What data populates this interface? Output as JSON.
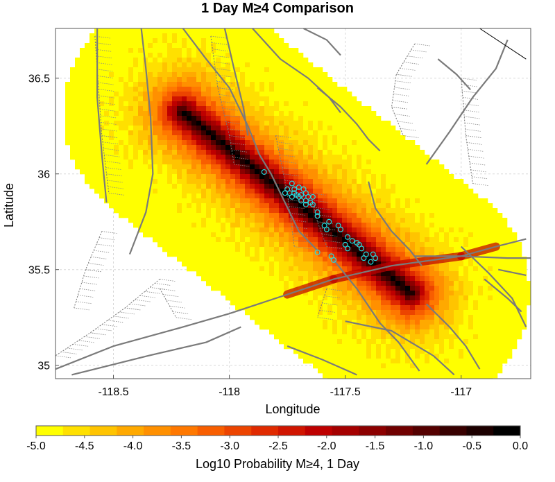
{
  "chart_data": {
    "type": "heatmap",
    "title": "1 Day M≥4 Comparison",
    "xlabel": "Longitude",
    "ylabel": "Latitude",
    "xlim": [
      -118.75,
      -116.7
    ],
    "ylim": [
      34.93,
      36.76
    ],
    "x_ticks": [
      -118.5,
      -118,
      -117.5,
      -117
    ],
    "x_tick_labels": [
      "-118.5",
      "-118",
      "-117.5",
      "-117"
    ],
    "y_ticks": [
      35,
      35.5,
      36,
      36.5
    ],
    "y_tick_labels": [
      "35",
      "35.5",
      "36",
      "36.5"
    ],
    "grid": true,
    "colorbar": {
      "label": "Log10 Probability M≥4, 1 Day",
      "range": [
        -5.0,
        0.0
      ],
      "ticks": [
        -5.0,
        -4.5,
        -4.0,
        -3.5,
        -3.0,
        -2.5,
        -2.0,
        -1.5,
        -1.0,
        -0.5,
        0.0
      ],
      "tick_labels": [
        "-5.0",
        "-4.5",
        "-4.0",
        "-3.5",
        "-3.0",
        "-2.5",
        "-2.0",
        "-1.5",
        "-1.0",
        "-0.5",
        "0.0"
      ],
      "colors": [
        "#ffff00",
        "#ffe000",
        "#ffc400",
        "#ffa900",
        "#ff9000",
        "#ff7800",
        "#f85e00",
        "#ec4400",
        "#e02a00",
        "#d01500",
        "#be0000",
        "#a50000",
        "#8c0000",
        "#700000",
        "#540000",
        "#380000",
        "#1c0000",
        "#000000"
      ]
    },
    "forecast_zone": {
      "axis_start": [
        -118.2,
        36.32
      ],
      "axis_end": [
        -117.22,
        35.38
      ],
      "axis_half_width_lon": 0.1,
      "min_value": -5.0,
      "max_value": 0.0
    },
    "earthquakes": {
      "marker_color": "#22dde0",
      "points": [
        [
          -117.85,
          36.01
        ],
        [
          -117.73,
          35.95
        ],
        [
          -117.75,
          35.92
        ],
        [
          -117.72,
          35.92
        ],
        [
          -117.7,
          35.93
        ],
        [
          -117.68,
          35.92
        ],
        [
          -117.76,
          35.9
        ],
        [
          -117.74,
          35.9
        ],
        [
          -117.72,
          35.9
        ],
        [
          -117.71,
          35.89
        ],
        [
          -117.69,
          35.89
        ],
        [
          -117.67,
          35.9
        ],
        [
          -117.73,
          35.88
        ],
        [
          -117.7,
          35.88
        ],
        [
          -117.66,
          35.88
        ],
        [
          -117.64,
          35.88
        ],
        [
          -117.69,
          35.86
        ],
        [
          -117.67,
          35.86
        ],
        [
          -117.65,
          35.85
        ],
        [
          -117.67,
          35.84
        ],
        [
          -117.64,
          35.84
        ],
        [
          -117.62,
          35.8
        ],
        [
          -117.62,
          35.78
        ],
        [
          -117.57,
          35.75
        ],
        [
          -117.59,
          35.73
        ],
        [
          -117.58,
          35.71
        ],
        [
          -117.53,
          35.73
        ],
        [
          -117.52,
          35.71
        ],
        [
          -117.49,
          35.67
        ],
        [
          -117.47,
          35.65
        ],
        [
          -117.45,
          35.64
        ],
        [
          -117.5,
          35.63
        ],
        [
          -117.49,
          35.61
        ],
        [
          -117.44,
          35.63
        ],
        [
          -117.43,
          35.61
        ],
        [
          -117.41,
          35.58
        ],
        [
          -117.38,
          35.58
        ],
        [
          -117.37,
          35.56
        ],
        [
          -117.42,
          35.56
        ],
        [
          -117.39,
          35.54
        ],
        [
          -117.56,
          35.57
        ],
        [
          -117.55,
          35.55
        ],
        [
          -117.62,
          35.59
        ]
      ]
    },
    "faults": [
      [
        [
          -118.38,
          36.76
        ],
        [
          -118.36,
          36.55
        ],
        [
          -118.34,
          36.3
        ],
        [
          -118.33,
          36.0
        ],
        [
          -118.36,
          35.8
        ],
        [
          -118.43,
          35.58
        ]
      ],
      [
        [
          -118.2,
          36.76
        ],
        [
          -118.1,
          36.6
        ],
        [
          -118.0,
          36.45
        ],
        [
          -117.92,
          36.25
        ],
        [
          -117.87,
          36.1
        ],
        [
          -117.82,
          36.0
        ],
        [
          -117.76,
          35.85
        ],
        [
          -117.7,
          35.7
        ],
        [
          -117.62,
          35.6
        ]
      ],
      [
        [
          -118.02,
          36.76
        ],
        [
          -117.98,
          36.55
        ],
        [
          -117.94,
          36.35
        ],
        [
          -117.92,
          36.2
        ]
      ],
      [
        [
          -118.57,
          36.76
        ],
        [
          -118.57,
          36.4
        ],
        [
          -118.55,
          36.1
        ],
        [
          -118.53,
          35.85
        ]
      ],
      [
        [
          -117.9,
          36.76
        ],
        [
          -117.78,
          36.6
        ],
        [
          -117.66,
          36.5
        ],
        [
          -117.57,
          36.4
        ],
        [
          -117.52,
          36.32
        ]
      ],
      [
        [
          -117.62,
          36.45
        ],
        [
          -117.52,
          36.35
        ],
        [
          -117.45,
          36.26
        ],
        [
          -117.4,
          36.18
        ],
        [
          -117.35,
          36.12
        ]
      ],
      [
        [
          -118.75,
          34.98
        ],
        [
          -118.5,
          35.1
        ],
        [
          -118.2,
          35.2
        ],
        [
          -118.0,
          35.27
        ],
        [
          -117.75,
          35.37
        ],
        [
          -117.55,
          35.45
        ],
        [
          -117.3,
          35.52
        ],
        [
          -117.0,
          35.57
        ],
        [
          -116.85,
          35.62
        ],
        [
          -116.72,
          35.66
        ]
      ],
      [
        [
          -118.68,
          34.95
        ],
        [
          -118.35,
          35.05
        ],
        [
          -118.1,
          35.12
        ],
        [
          -117.95,
          35.2
        ]
      ],
      [
        [
          -117.2,
          35.57
        ],
        [
          -117.0,
          35.57
        ],
        [
          -116.8,
          35.56
        ],
        [
          -116.7,
          35.56
        ]
      ],
      [
        [
          -117.55,
          35.55
        ],
        [
          -117.45,
          35.4
        ],
        [
          -117.35,
          35.22
        ],
        [
          -117.27,
          35.12
        ],
        [
          -117.18,
          34.97
        ]
      ],
      [
        [
          -117.5,
          35.23
        ],
        [
          -117.3,
          35.18
        ],
        [
          -117.12,
          35.05
        ],
        [
          -117.03,
          34.95
        ]
      ],
      [
        [
          -117.75,
          35.1
        ],
        [
          -117.6,
          35.03
        ],
        [
          -117.45,
          34.95
        ]
      ],
      [
        [
          -117.4,
          35.96
        ],
        [
          -117.37,
          35.82
        ],
        [
          -117.3,
          35.7
        ],
        [
          -117.22,
          35.6
        ],
        [
          -117.17,
          35.52
        ]
      ],
      [
        [
          -117.0,
          35.62
        ],
        [
          -116.88,
          35.48
        ],
        [
          -116.78,
          35.35
        ],
        [
          -116.72,
          35.2
        ]
      ],
      [
        [
          -116.9,
          35.45
        ],
        [
          -116.8,
          35.35
        ],
        [
          -116.74,
          35.28
        ]
      ],
      [
        [
          -116.84,
          35.5
        ],
        [
          -116.72,
          35.47
        ]
      ],
      [
        [
          -117.15,
          36.05
        ],
        [
          -117.05,
          36.22
        ],
        [
          -116.95,
          36.4
        ],
        [
          -116.85,
          36.55
        ],
        [
          -116.8,
          36.7
        ]
      ],
      [
        [
          -117.15,
          35.32
        ],
        [
          -117.05,
          35.2
        ],
        [
          -116.98,
          35.1
        ],
        [
          -116.92,
          34.98
        ]
      ],
      [
        [
          -117.68,
          36.76
        ],
        [
          -117.58,
          36.7
        ],
        [
          -117.52,
          36.62
        ]
      ],
      [
        [
          -117.1,
          36.6
        ],
        [
          -117.02,
          36.52
        ],
        [
          -116.96,
          36.44
        ]
      ]
    ],
    "boundary_line": [
      [
        -116.92,
        36.76
      ],
      [
        -116.72,
        36.6
      ]
    ],
    "hatch_lines": [
      [
        [
          -118.58,
          36.72
        ],
        [
          -118.55,
          36.2
        ],
        [
          -118.52,
          35.9
        ]
      ],
      [
        [
          -118.08,
          36.72
        ],
        [
          -118.05,
          36.45
        ],
        [
          -118.0,
          36.2
        ],
        [
          -117.98,
          36.05
        ]
      ],
      [
        [
          -117.8,
          36.2
        ],
        [
          -117.75,
          35.9
        ],
        [
          -117.72,
          35.62
        ]
      ],
      [
        [
          -117.2,
          36.68
        ],
        [
          -117.28,
          36.52
        ],
        [
          -117.3,
          36.35
        ],
        [
          -117.25,
          36.2
        ]
      ],
      [
        [
          -117.0,
          36.5
        ],
        [
          -116.98,
          36.2
        ],
        [
          -116.95,
          35.95
        ]
      ],
      [
        [
          -118.55,
          35.7
        ],
        [
          -118.62,
          35.5
        ],
        [
          -118.67,
          35.3
        ]
      ],
      [
        [
          -118.3,
          35.45
        ],
        [
          -118.45,
          35.3
        ],
        [
          -118.6,
          35.17
        ],
        [
          -118.75,
          35.05
        ]
      ],
      [
        [
          -118.3,
          35.4
        ],
        [
          -118.23,
          35.25
        ]
      ],
      [
        [
          -117.65,
          35.9
        ],
        [
          -117.62,
          35.75
        ],
        [
          -117.58,
          35.62
        ]
      ],
      [
        [
          -117.58,
          35.4
        ],
        [
          -117.62,
          35.25
        ]
      ]
    ]
  }
}
